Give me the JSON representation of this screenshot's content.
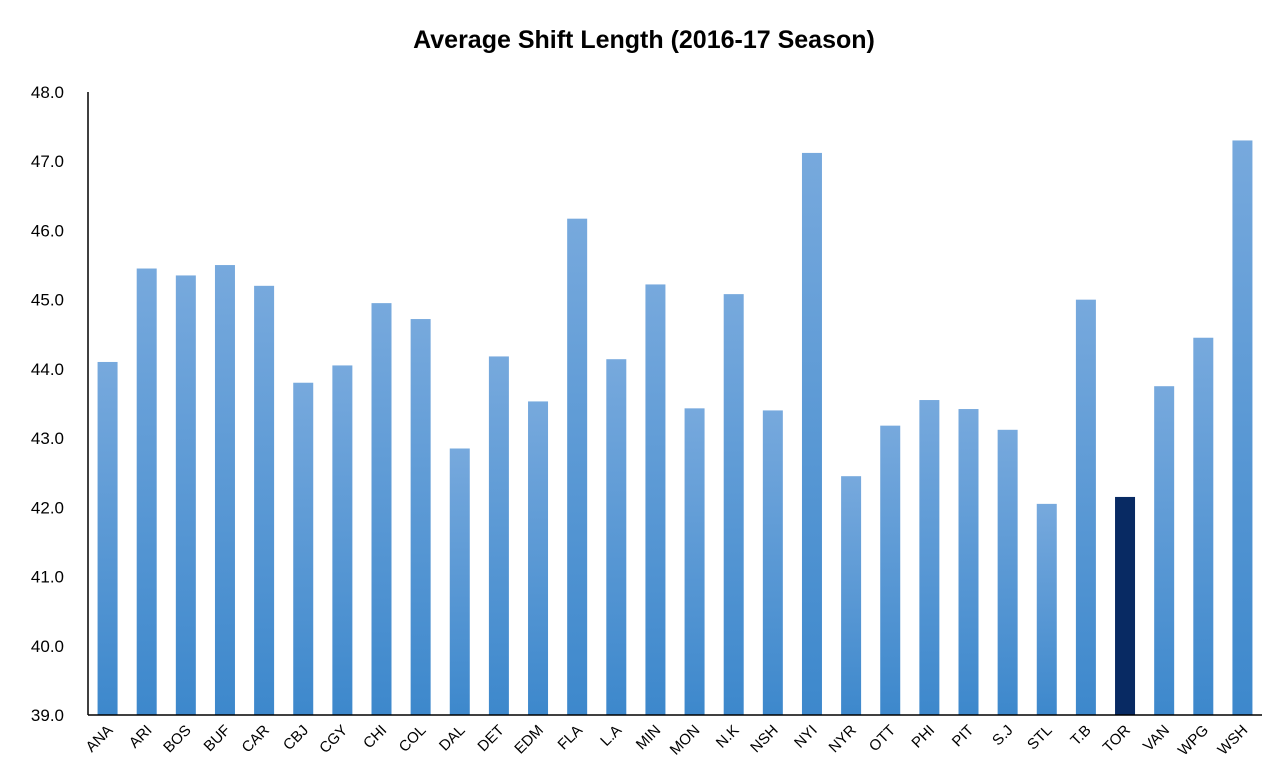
{
  "chart_data": {
    "type": "bar",
    "title": "Average Shift Length (2016-17 Season)",
    "xlabel": "",
    "ylabel": "",
    "ylim": [
      39.0,
      48.0
    ],
    "yticks": [
      "39.0",
      "40.0",
      "41.0",
      "42.0",
      "43.0",
      "44.0",
      "45.0",
      "46.0",
      "47.0",
      "48.0"
    ],
    "grid": false,
    "categories": [
      "ANA",
      "ARI",
      "BOS",
      "BUF",
      "CAR",
      "CBJ",
      "CGY",
      "CHI",
      "COL",
      "DAL",
      "DET",
      "EDM",
      "FLA",
      "L.A",
      "MIN",
      "MON",
      "N.K",
      "NSH",
      "NYI",
      "NYR",
      "OTT",
      "PHI",
      "PIT",
      "S.J",
      "STL",
      "T.B",
      "TOR",
      "VAN",
      "WPG",
      "WSH"
    ],
    "values": [
      44.1,
      45.45,
      45.35,
      45.5,
      45.2,
      43.8,
      44.05,
      44.95,
      44.72,
      42.85,
      44.18,
      43.53,
      46.17,
      44.14,
      45.22,
      43.43,
      45.08,
      43.4,
      47.12,
      42.45,
      43.18,
      43.55,
      43.42,
      43.12,
      42.05,
      45.0,
      42.15,
      43.75,
      44.45,
      47.3
    ],
    "colors": {
      "bar_top": "#77a9dd",
      "bar_bottom": "#3d88cc",
      "highlight": "#082a63",
      "axis": "#000000"
    },
    "highlight_category": "TOR"
  }
}
